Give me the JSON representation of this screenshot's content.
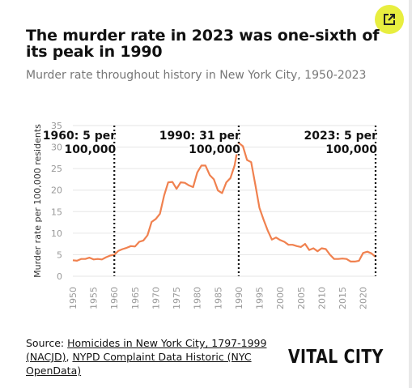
{
  "title": "The murder rate in 2023 was one-sixth of its peak in 1990",
  "subtitle": "Murder rate throughout history in New York City, 1950-2023",
  "expand_icon": "external-link-icon",
  "colors": {
    "line": "#f0814f",
    "accent_button": "#e8ee3f",
    "grid": "#e6e6e6",
    "axis_text": "#999999"
  },
  "source": {
    "prefix": "Source: ",
    "link1": "Homicides in New York City, 1797-1999 (NACJD)",
    "separator": ", ",
    "link2": "NYPD Complaint Data Historic (NYC OpenData)"
  },
  "logo": "VITAL CITY",
  "chart_data": {
    "type": "line",
    "title": "The murder rate in 2023 was one-sixth of its peak in 1990",
    "subtitle": "Murder rate throughout history in New York City, 1950-2023",
    "xlabel": "",
    "ylabel": "Murder rate per 100,000 residents",
    "xlim": [
      1950,
      2023
    ],
    "ylim": [
      0,
      35
    ],
    "yticks": [
      0,
      5,
      10,
      15,
      20,
      25,
      30,
      35
    ],
    "xticks": [
      1950,
      1955,
      1960,
      1965,
      1970,
      1975,
      1980,
      1985,
      1990,
      1995,
      2000,
      2005,
      2010,
      2015,
      2020
    ],
    "grid": true,
    "series": [
      {
        "x": [
          1950,
          1951,
          1952,
          1953,
          1954,
          1955,
          1956,
          1957,
          1958,
          1959,
          1960,
          1961,
          1962,
          1963,
          1964,
          1965,
          1966,
          1967,
          1968,
          1969,
          1970,
          1971,
          1972,
          1973,
          1974,
          1975,
          1976,
          1977,
          1978,
          1979,
          1980,
          1981,
          1982,
          1983,
          1984,
          1985,
          1986,
          1987,
          1988,
          1989,
          1990,
          1991,
          1992,
          1993,
          1994,
          1995,
          1996,
          1997,
          1998,
          1999,
          2000,
          2001,
          2002,
          2003,
          2004,
          2005,
          2006,
          2007,
          2008,
          2009,
          2010,
          2011,
          2012,
          2013,
          2014,
          2015,
          2016,
          2017,
          2018,
          2019,
          2020,
          2021,
          2022,
          2023
        ],
        "y": [
          3.7,
          3.6,
          4.0,
          4.0,
          4.3,
          3.9,
          4.0,
          3.9,
          4.4,
          4.8,
          5.0,
          5.9,
          6.3,
          6.6,
          7.0,
          6.9,
          8.0,
          8.3,
          9.5,
          12.6,
          13.3,
          14.5,
          18.7,
          21.8,
          21.9,
          20.3,
          21.8,
          21.7,
          21.1,
          20.7,
          24.1,
          25.7,
          25.7,
          23.5,
          22.5,
          19.9,
          19.3,
          21.8,
          22.8,
          25.7,
          31.0,
          30.2,
          27.0,
          26.5,
          21.3,
          15.9,
          13.1,
          10.6,
          8.5,
          9.0,
          8.4,
          8.0,
          7.3,
          7.3,
          7.0,
          6.8,
          7.5,
          6.1,
          6.5,
          5.8,
          6.5,
          6.3,
          5.0,
          4.0,
          4.0,
          4.1,
          4.0,
          3.4,
          3.4,
          3.6,
          5.4,
          5.7,
          5.3,
          4.5
        ]
      }
    ],
    "annotations": [
      {
        "x": 1960,
        "line1": "1960: 5 per",
        "line2": "100,000"
      },
      {
        "x": 1990,
        "line1": "1990: 31 per",
        "line2": "100,000"
      },
      {
        "x": 2023,
        "line1": "2023: 5 per",
        "line2": "100,000"
      }
    ]
  }
}
